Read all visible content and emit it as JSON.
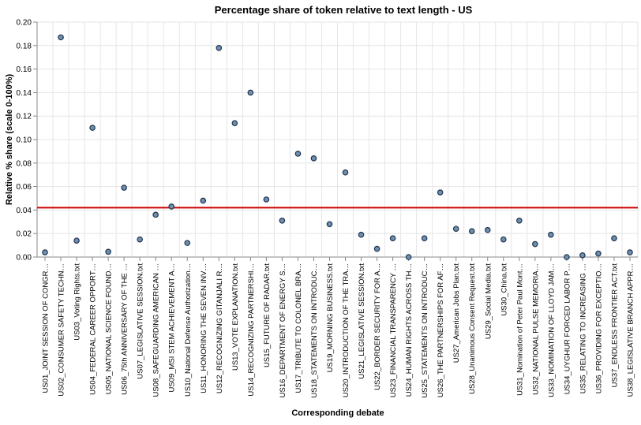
{
  "chart_data": {
    "type": "scatter",
    "title": "Percentage share of token relative to text length - US",
    "xlabel": "Corresponding debate",
    "ylabel": "Relative % share (scale 0-100%)",
    "ylim": [
      0,
      0.2
    ],
    "yticks": [
      "0.00",
      "0.02",
      "0.04",
      "0.06",
      "0.08",
      "0.10",
      "0.12",
      "0.14",
      "0.16",
      "0.18",
      "0.20"
    ],
    "grid": true,
    "reference_line": {
      "y": 0.042,
      "color": "#cc0000"
    },
    "point_color": "#6f8fae",
    "categories": [
      "US01_JOINT SESSION OF CONGR…",
      "US02_CONSUMER SAFETY TECHN…",
      "US03_Voting Rights.txt",
      "US04_FEDERAL CAREER OPPORT…",
      "US05_NATIONAL SCIENCE FOUND…",
      "US06_75th ANNIVERSARY OF THE …",
      "US07_LEGISLATIVE SESSION.txt",
      "US08_SAFEGUARDING AMERICAN …",
      "US09_MSI STEM ACHIEVEMENT A…",
      "US10_National Defense Authorization…",
      "US11_HONORING THE SEVEN INV…",
      "US12_RECOGNIZING GITANJALI R…",
      "US13_VOTE EXPLANATION.txt",
      "US14_RECOGNIZING PARTNERSHI…",
      "US15_FUTURE OF RADAR.txt",
      "US16_DEPARTMENT OF ENERGY S…",
      "US17_TRIBUTE TO COLONEL BRA…",
      "US18_STATEMENTS ON INTRODUC…",
      "US19_MORNING BUSINESS.txt",
      "US20_INTRODUCTION OF THE TRA…",
      "US21_LEGISLATIVE SESSION.txt",
      "US22_BORDER SECURITY FOR A…",
      "US23_FINANCIAL TRANSPARENCY …",
      "US24_HUMAN RIGHTS ACROSS TH…",
      "US25_STATEMENTS ON INTRODUC…",
      "US26_THE PARTNERSHIPS FOR AF…",
      "US27_American Jobs Plan.txt",
      "US28_Unanimous Consent Request.txt",
      "US29_Social Media.txt",
      "US30_China.txt",
      "US31_Nomination of Peter Paul Mont…",
      "US32_NATIONAL PULSE MEMORIA…",
      "US33_NOMINATION OF LLOYD JAM…",
      "US34_UYGHUR FORCED LABOR P…",
      "US35_RELATING TO INCREASING …",
      "US36_PROVIDING FOR EXCEPTIO…",
      "US37_ENDLESS FRONTIER ACT.txt",
      "US38_LEGISLATIVE BRANCH APPR…"
    ],
    "values": [
      0.004,
      0.187,
      0.014,
      0.11,
      0.0045,
      0.059,
      0.015,
      0.036,
      0.043,
      0.012,
      0.048,
      0.178,
      0.114,
      0.14,
      0.049,
      0.031,
      0.088,
      0.084,
      0.028,
      0.072,
      0.019,
      0.007,
      0.016,
      0.0,
      0.016,
      0.055,
      0.024,
      0.022,
      0.023,
      0.015,
      0.031,
      0.011,
      0.019,
      0.0,
      0.0015,
      0.003,
      0.016,
      0.004
    ]
  }
}
